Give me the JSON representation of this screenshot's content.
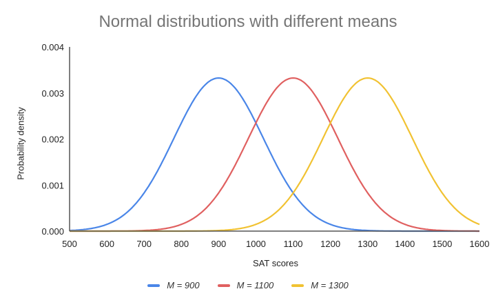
{
  "chart_data": {
    "type": "line",
    "title": "Normal distributions with different means",
    "xlabel": "SAT scores",
    "ylabel": "Probability density",
    "xlim": [
      500,
      1600
    ],
    "ylim": [
      0,
      0.004
    ],
    "x_ticks": [
      "500",
      "600",
      "700",
      "800",
      "900",
      "1000",
      "1100",
      "1200",
      "1300",
      "1400",
      "1500",
      "1600"
    ],
    "y_ticks": [
      "0.000",
      "0.001",
      "0.002",
      "0.003",
      "0.004"
    ],
    "grid": false,
    "legend_position": "bottom",
    "series": [
      {
        "name": "M = 900",
        "mean": 900,
        "sd": 120,
        "color": "#4a86e8",
        "peak_density": 0.00332
      },
      {
        "name": "M = 1100",
        "mean": 1100,
        "sd": 120,
        "color": "#e06060",
        "peak_density": 0.00332
      },
      {
        "name": "M = 1300",
        "mean": 1300,
        "sd": 120,
        "color": "#f1c232",
        "peak_density": 0.00332
      }
    ],
    "sample_points": {
      "x": [
        500,
        600,
        700,
        800,
        900,
        1000,
        1100,
        1200,
        1300,
        1400,
        1500,
        1600
      ],
      "M = 900": [
        0.0,
        0.0001,
        0.0006,
        0.0023,
        0.0033,
        0.0023,
        0.0006,
        0.0001,
        0.0,
        0.0,
        0.0,
        0.0
      ],
      "M = 1100": [
        0.0,
        0.0,
        0.0,
        0.0001,
        0.0006,
        0.0023,
        0.0033,
        0.0023,
        0.0006,
        0.0001,
        0.0,
        0.0
      ],
      "M = 1300": [
        0.0,
        0.0,
        0.0,
        0.0,
        0.0,
        0.0001,
        0.0006,
        0.0023,
        0.0033,
        0.0023,
        0.0006,
        0.0001
      ]
    }
  },
  "legend": {
    "items": [
      {
        "label": "M = 900",
        "color": "#4a86e8"
      },
      {
        "label": "M = 1100",
        "color": "#e06060"
      },
      {
        "label": "M = 1300",
        "color": "#f1c232"
      }
    ]
  }
}
